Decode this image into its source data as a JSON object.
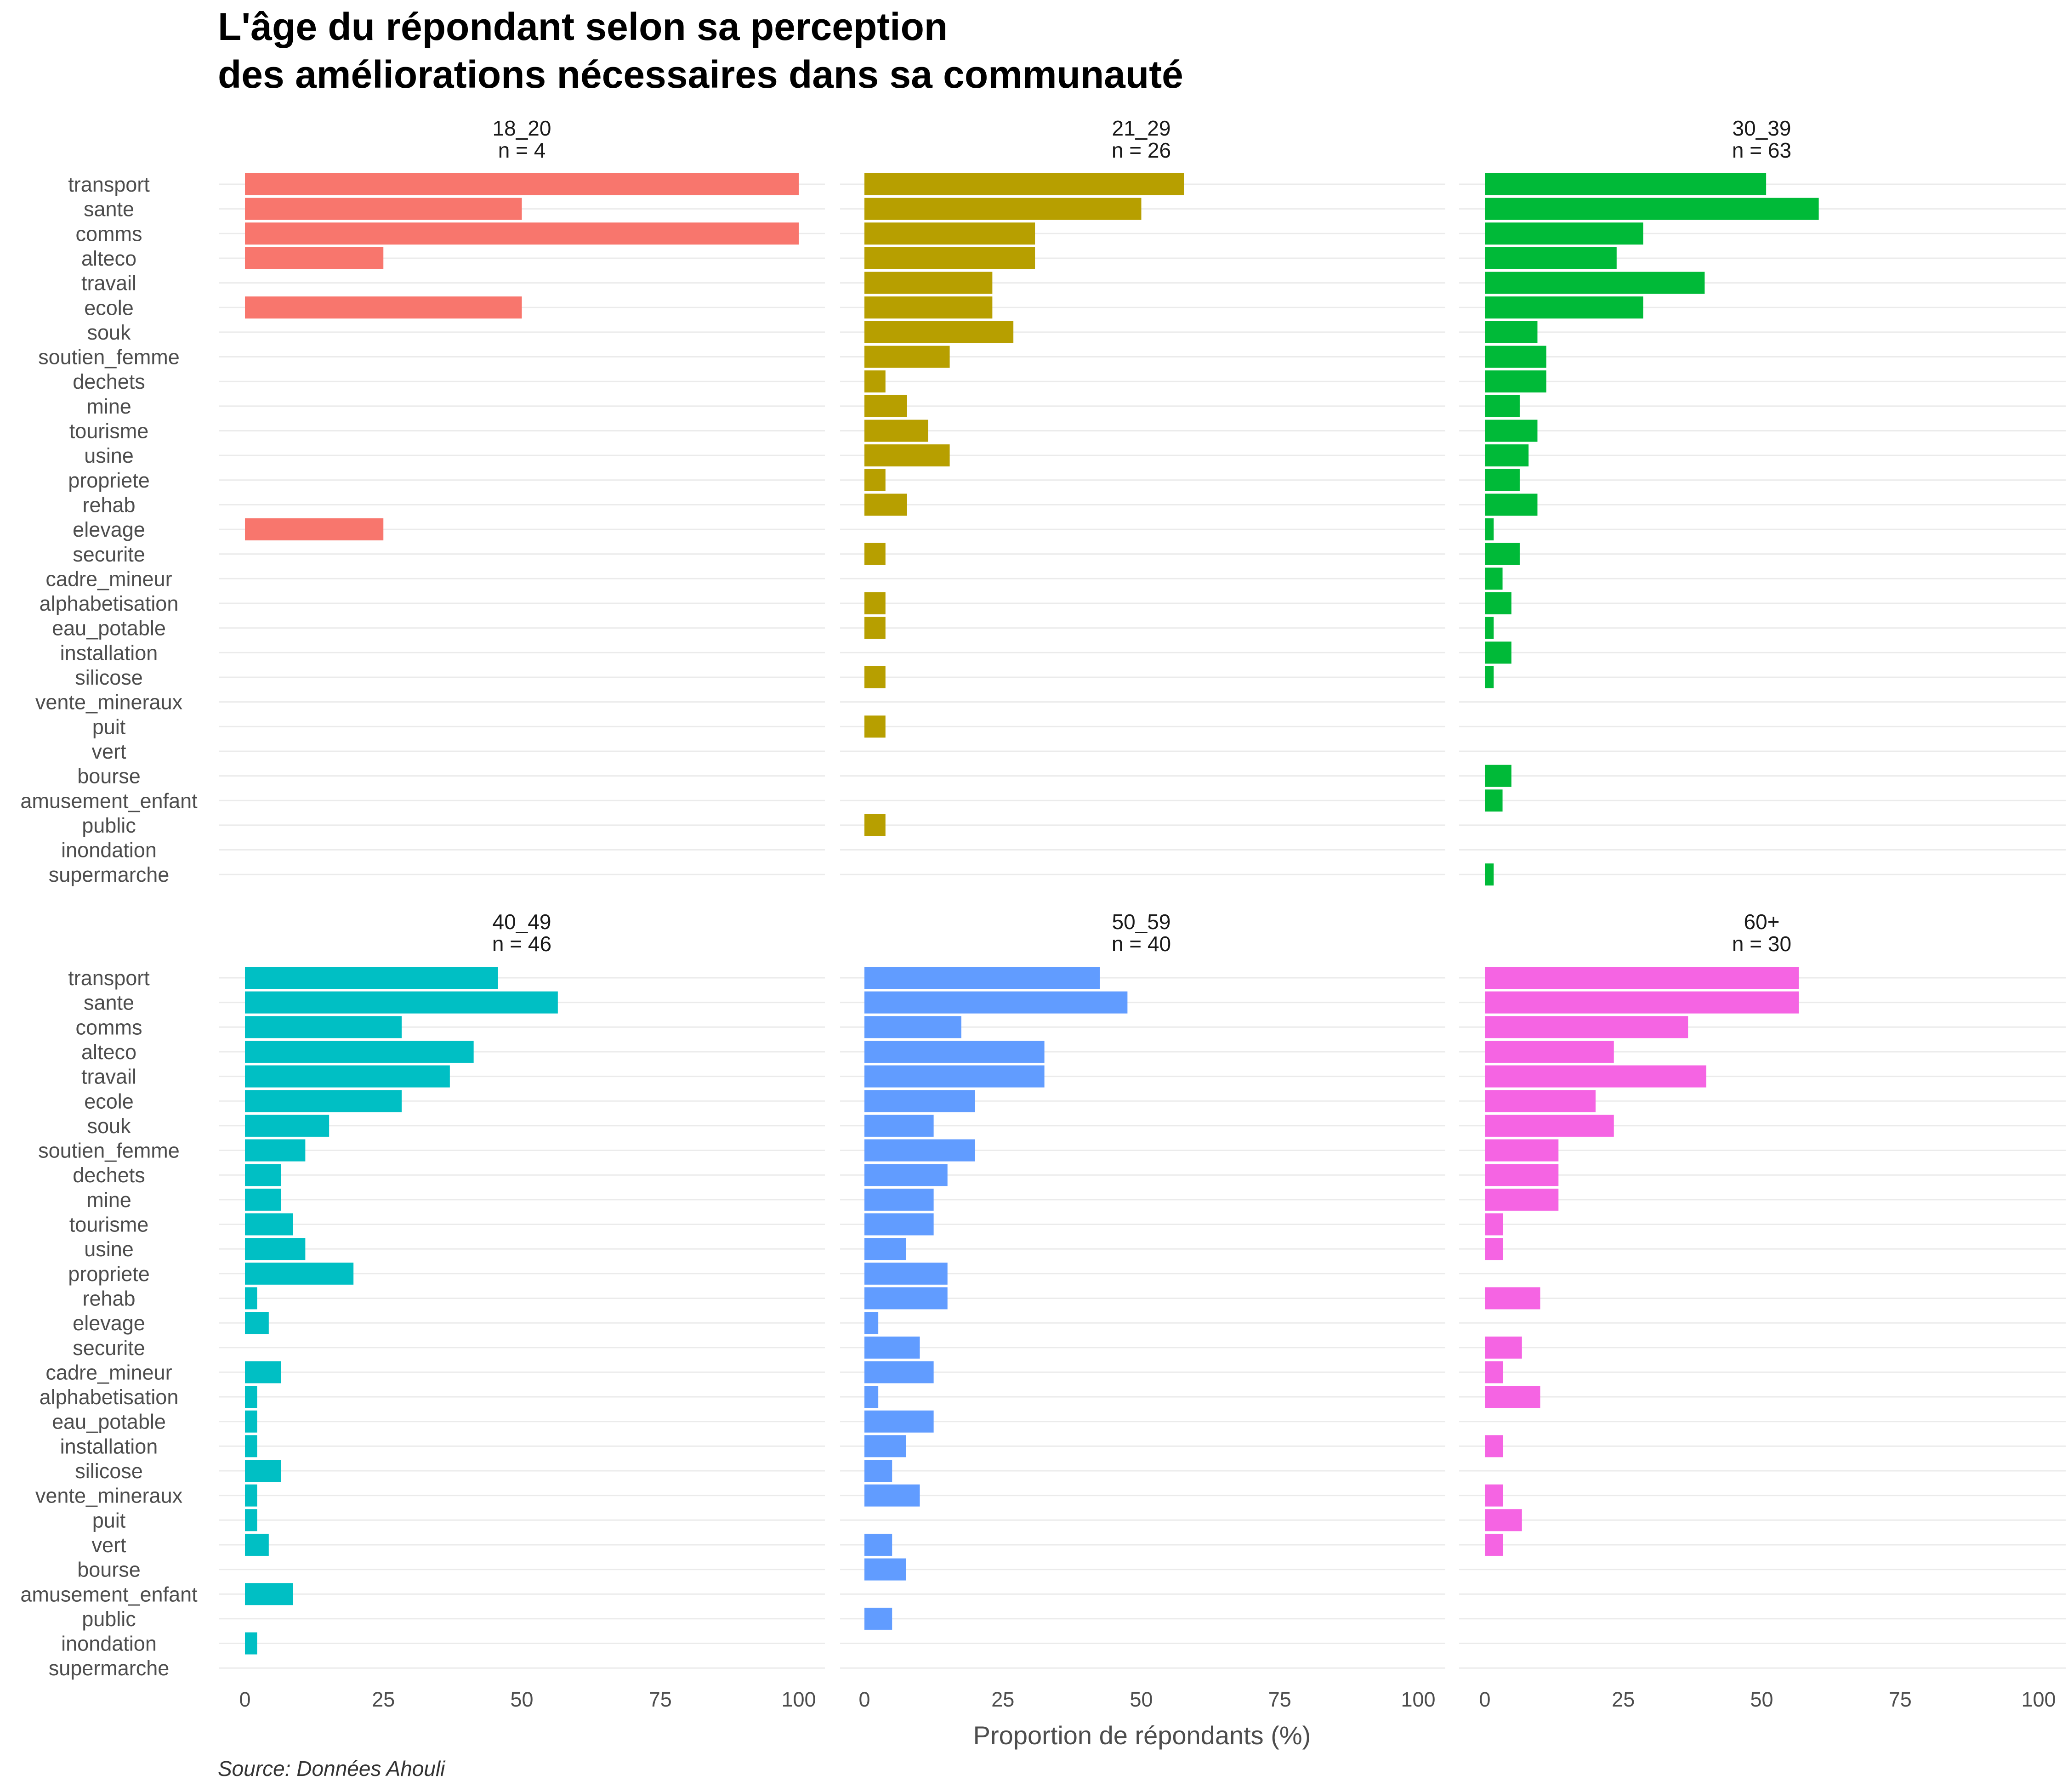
{
  "chart_data": {
    "type": "bar",
    "orientation": "horizontal",
    "title": [
      "L'âge du répondant selon sa perception",
      "des améliorations nécessaires dans sa communauté"
    ],
    "xlabel": "Proportion de répondants (%)",
    "ylabel": "",
    "caption": "Source: Données Ahouli",
    "xlim": [
      0,
      100
    ],
    "xticks": [
      0,
      25,
      50,
      75,
      100
    ],
    "grid": true,
    "legend": "none",
    "categories": [
      "transport",
      "sante",
      "comms",
      "alteco",
      "travail",
      "ecole",
      "souk",
      "soutien_femme",
      "dechets",
      "mine",
      "tourisme",
      "usine",
      "propriete",
      "rehab",
      "elevage",
      "securite",
      "cadre_mineur",
      "alphabetisation",
      "eau_potable",
      "installation",
      "silicose",
      "vente_mineraux",
      "puit",
      "vert",
      "bourse",
      "amusement_enfant",
      "public",
      "inondation",
      "supermarche"
    ],
    "panels": [
      {
        "label": "18_20",
        "n_label": "n = 4",
        "color": "#F8766D",
        "values": [
          100,
          50,
          100,
          25,
          0,
          50,
          0,
          0,
          0,
          0,
          0,
          0,
          0,
          0,
          25,
          0,
          0,
          0,
          0,
          0,
          0,
          0,
          0,
          0,
          0,
          0,
          0,
          0,
          0
        ]
      },
      {
        "label": "21_29",
        "n_label": "n = 26",
        "color": "#B79F00",
        "values": [
          57.7,
          50,
          30.8,
          30.8,
          23.1,
          23.1,
          26.9,
          15.4,
          3.8,
          7.7,
          11.5,
          15.4,
          3.8,
          7.7,
          0,
          3.8,
          0,
          3.8,
          3.8,
          0,
          3.8,
          0,
          3.8,
          0,
          0,
          0,
          3.8,
          0,
          0
        ]
      },
      {
        "label": "30_39",
        "n_label": "n = 63",
        "color": "#00BA38",
        "values": [
          50.8,
          60.3,
          28.6,
          23.8,
          39.7,
          28.6,
          9.5,
          11.1,
          11.1,
          6.3,
          9.5,
          7.9,
          6.3,
          9.5,
          1.6,
          6.3,
          3.2,
          4.8,
          1.6,
          4.8,
          1.6,
          0,
          0,
          0,
          4.8,
          3.2,
          0,
          0,
          1.6
        ]
      },
      {
        "label": "40_49",
        "n_label": "n = 46",
        "color": "#00BFC4",
        "values": [
          45.7,
          56.5,
          28.3,
          41.3,
          37.0,
          28.3,
          15.2,
          10.9,
          6.5,
          6.5,
          8.7,
          10.9,
          19.6,
          2.2,
          4.3,
          0,
          6.5,
          2.2,
          2.2,
          2.2,
          6.5,
          2.2,
          2.2,
          4.3,
          0,
          8.7,
          0,
          2.2,
          0
        ]
      },
      {
        "label": "50_59",
        "n_label": "n = 40",
        "color": "#619CFF",
        "values": [
          42.5,
          47.5,
          17.5,
          32.5,
          32.5,
          20,
          12.5,
          20,
          15,
          12.5,
          12.5,
          7.5,
          15,
          15,
          2.5,
          10,
          12.5,
          2.5,
          12.5,
          7.5,
          5,
          10,
          0,
          5,
          7.5,
          0,
          5,
          0,
          0
        ]
      },
      {
        "label": "60+",
        "n_label": "n = 30",
        "color": "#F564E3",
        "values": [
          56.7,
          56.7,
          36.7,
          23.3,
          40,
          20,
          23.3,
          13.3,
          13.3,
          13.3,
          3.3,
          3.3,
          0,
          10,
          0,
          6.7,
          3.3,
          10,
          0,
          3.3,
          0,
          3.3,
          6.7,
          3.3,
          0,
          0,
          0,
          0,
          0
        ]
      }
    ]
  }
}
